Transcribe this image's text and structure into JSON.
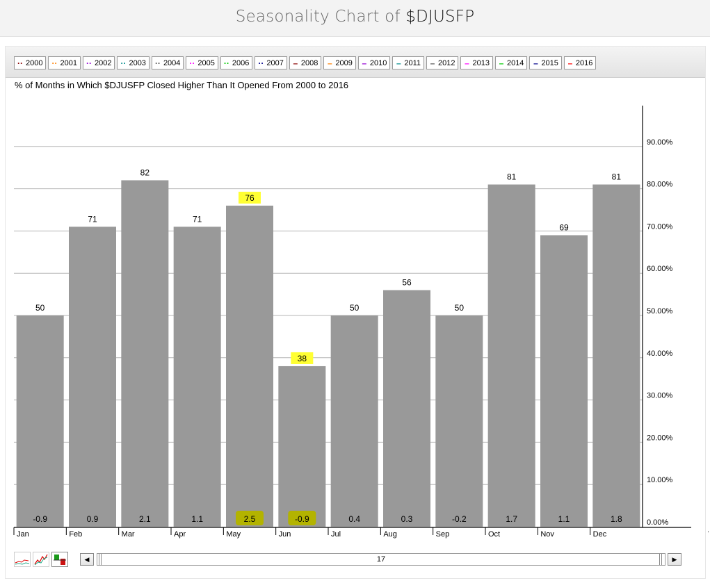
{
  "page": {
    "title_prefix": "Seasonality Chart of ",
    "title_symbol": "$DJUSFP"
  },
  "legend": [
    {
      "label": "2000",
      "color": "#8b0000"
    },
    {
      "label": "2001",
      "color": "#ff7f00"
    },
    {
      "label": "2002",
      "color": "#9400d3"
    },
    {
      "label": "2003",
      "color": "#008b8b"
    },
    {
      "label": "2004",
      "color": "#555555"
    },
    {
      "label": "2005",
      "color": "#ff00ff"
    },
    {
      "label": "2006",
      "color": "#00cc00"
    },
    {
      "label": "2007",
      "color": "#00008b"
    },
    {
      "label": "2008",
      "color": "#8b0000"
    },
    {
      "label": "2009",
      "color": "#ff7f00"
    },
    {
      "label": "2010",
      "color": "#9400d3"
    },
    {
      "label": "2011",
      "color": "#008b8b"
    },
    {
      "label": "2012",
      "color": "#555555"
    },
    {
      "label": "2013",
      "color": "#ff00ff"
    },
    {
      "label": "2014",
      "color": "#00cc00"
    },
    {
      "label": "2015",
      "color": "#00008b"
    },
    {
      "label": "2016",
      "color": "#ff0000"
    }
  ],
  "controls": {
    "scroll_value": "17",
    "left_arrow": "◀",
    "right_arrow": "▶"
  },
  "side_mark": ".",
  "chart_data": {
    "type": "bar",
    "title": "% of Months in Which $DJUSFP Closed Higher Than It Opened From 2000 to 2016",
    "categories": [
      "Jan",
      "Feb",
      "Mar",
      "Apr",
      "May",
      "Jun",
      "Jul",
      "Aug",
      "Sep",
      "Oct",
      "Nov",
      "Dec"
    ],
    "values": [
      50,
      71,
      82,
      71,
      76,
      38,
      50,
      56,
      50,
      81,
      69,
      81
    ],
    "avg_returns": [
      "-0.9",
      "0.9",
      "2.1",
      "1.1",
      "2.5",
      "-0.9",
      "0.4",
      "0.3",
      "-0.2",
      "1.7",
      "1.1",
      "1.8"
    ],
    "highlighted_months": [
      "May",
      "Jun"
    ],
    "highlight_color": "#ffff33",
    "highlight_return_color": "#b3b300",
    "bar_color": "#999999",
    "y_ticks": [
      "0.00%",
      "10.00%",
      "20.00%",
      "30.00%",
      "40.00%",
      "50.00%",
      "60.00%",
      "70.00%",
      "80.00%",
      "90.00%"
    ],
    "ylim": [
      0,
      100
    ],
    "y_axis_position": "right",
    "grid": true
  }
}
